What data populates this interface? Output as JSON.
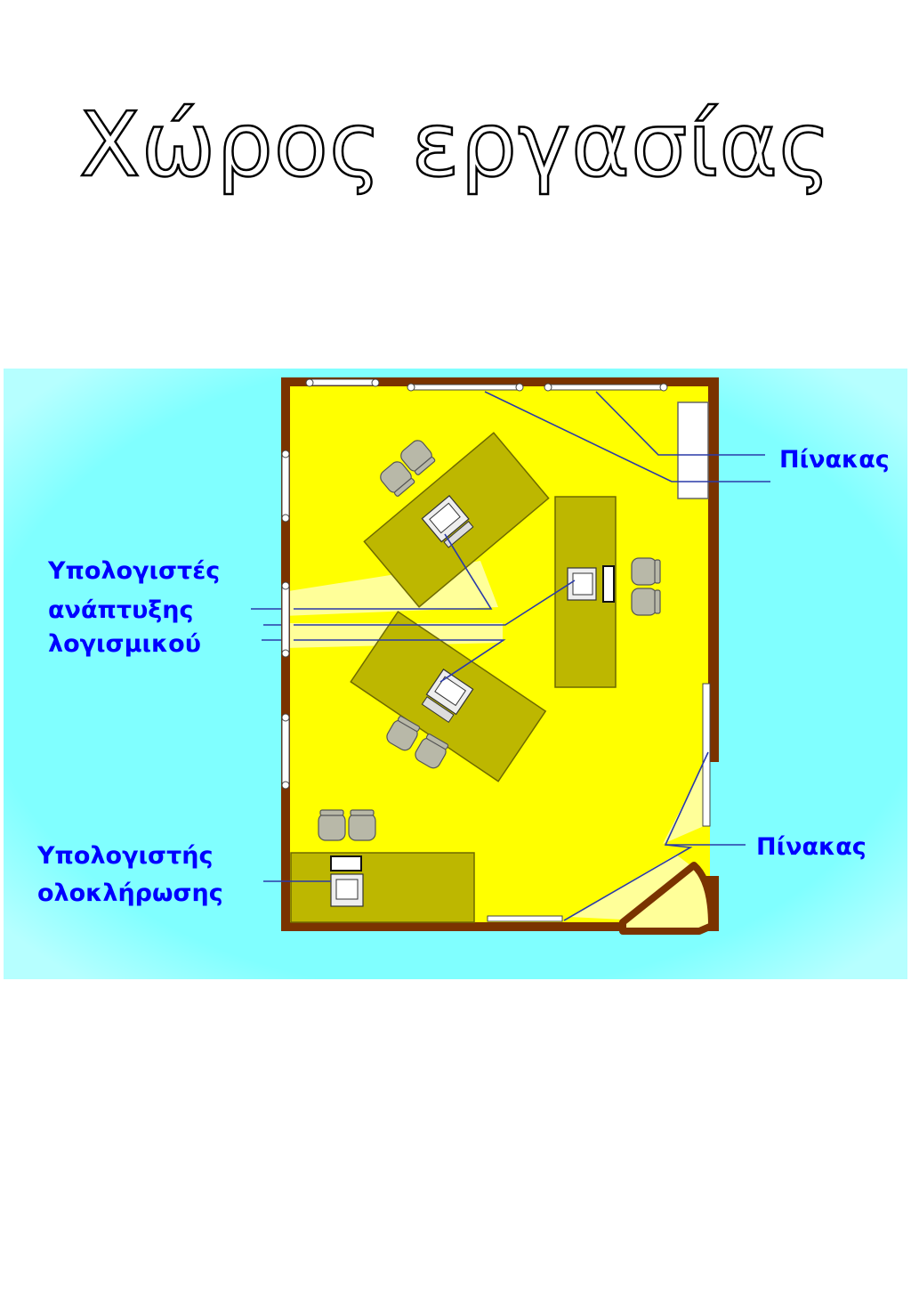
{
  "page": {
    "title": "Χώρος εργασίας"
  },
  "diagram": {
    "labels": {
      "board_top": "Πίνακας",
      "board_bottom": "Πίνακας",
      "dev_line1": "Υπολογιστές",
      "dev_line2": "ανάπτυξης",
      "dev_line3": "λογισμικού",
      "int_line1": "Υπολογιστής",
      "int_line2": "ολοκλήρωσης"
    },
    "colors": {
      "outside": "#80ffff",
      "floor": "#ffff00",
      "wall": "#7a3300",
      "desk": "#bdb700",
      "chair": "#b8b8a8",
      "label": "#0000ff",
      "leader": "#2a3aa8",
      "highlight": "#ffff99"
    }
  }
}
